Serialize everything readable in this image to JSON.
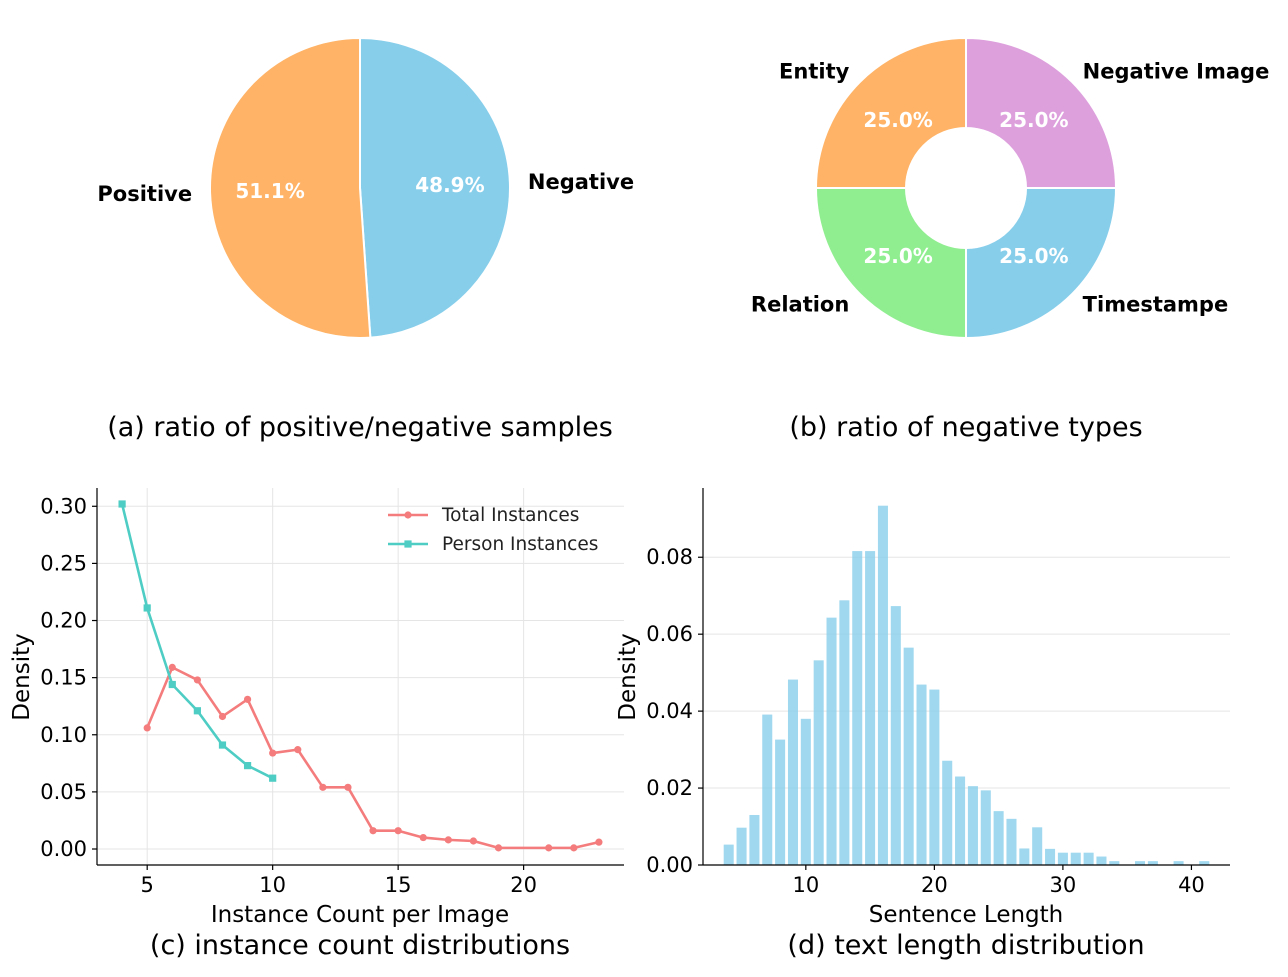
{
  "chart_data": [
    {
      "id": "a",
      "type": "pie",
      "caption": "(a) ratio of positive/negative samples",
      "start_angle_deg": 90,
      "counterclock": false,
      "slices": [
        {
          "label": "Negative",
          "value": 48.9,
          "pct_label": "48.9%",
          "color": "#87ceeb"
        },
        {
          "label": "Positive",
          "value": 51.1,
          "pct_label": "51.1%",
          "color": "#ffb366"
        }
      ]
    },
    {
      "id": "b",
      "type": "donut",
      "caption": "(b) ratio of negative types",
      "start_angle_deg": 90,
      "counterclock": false,
      "hole_ratio": 0.4,
      "slices": [
        {
          "label": "Negative Image",
          "value": 25.0,
          "pct_label": "25.0%",
          "color": "#dda0dd"
        },
        {
          "label": "Timestampe",
          "value": 25.0,
          "pct_label": "25.0%",
          "color": "#87ceeb"
        },
        {
          "label": "Relation",
          "value": 25.0,
          "pct_label": "25.0%",
          "color": "#90ee90"
        },
        {
          "label": "Entity",
          "value": 25.0,
          "pct_label": "25.0%",
          "color": "#ffb366"
        }
      ]
    },
    {
      "id": "c",
      "type": "line",
      "caption": "(c) instance count distributions",
      "xlabel": "Instance Count per Image",
      "ylabel": "Density",
      "xlim": [
        3,
        24
      ],
      "ylim": [
        -0.014,
        0.316
      ],
      "xticks": [
        5,
        10,
        15,
        20
      ],
      "yticks": [
        0.0,
        0.05,
        0.1,
        0.15,
        0.2,
        0.25,
        0.3
      ],
      "ytick_labels": [
        "0.00",
        "0.05",
        "0.10",
        "0.15",
        "0.20",
        "0.25",
        "0.30"
      ],
      "grid": true,
      "legend_position": "top-right",
      "series": [
        {
          "name": "Total Instances",
          "marker": "circle",
          "color": "#f47c7c",
          "x": [
            5,
            6,
            7,
            8,
            9,
            10,
            11,
            12,
            13,
            14,
            15,
            16,
            17,
            18,
            19,
            21,
            22,
            23
          ],
          "y": [
            0.106,
            0.159,
            0.148,
            0.116,
            0.131,
            0.084,
            0.087,
            0.054,
            0.054,
            0.016,
            0.016,
            0.01,
            0.008,
            0.007,
            0.001,
            0.001,
            0.001,
            0.006
          ]
        },
        {
          "name": "Person Instances",
          "marker": "square",
          "color": "#4ecdc4",
          "x": [
            4,
            5,
            6,
            7,
            8,
            9,
            10
          ],
          "y": [
            0.302,
            0.211,
            0.144,
            0.121,
            0.091,
            0.073,
            0.062
          ]
        }
      ]
    },
    {
      "id": "d",
      "type": "bar",
      "caption": "(d) text length distribution",
      "xlabel": "Sentence Length",
      "ylabel": "Density",
      "xlim": [
        2,
        43
      ],
      "ylim": [
        0,
        0.098
      ],
      "xticks": [
        10,
        20,
        30,
        40
      ],
      "yticks": [
        0.0,
        0.02,
        0.04,
        0.06,
        0.08
      ],
      "ytick_labels": [
        "0.00",
        "0.02",
        "0.04",
        "0.06",
        "0.08"
      ],
      "grid": true,
      "color": "#87ceeb",
      "categories": [
        4,
        5,
        6,
        7,
        8,
        9,
        10,
        11,
        12,
        13,
        14,
        15,
        16,
        17,
        18,
        19,
        20,
        21,
        22,
        23,
        24,
        25,
        26,
        27,
        28,
        29,
        30,
        31,
        32,
        33,
        34,
        36,
        37,
        39,
        41
      ],
      "values": [
        0.0053,
        0.0097,
        0.013,
        0.0391,
        0.0326,
        0.0482,
        0.038,
        0.0532,
        0.0643,
        0.0688,
        0.0816,
        0.0816,
        0.0934,
        0.0673,
        0.0565,
        0.0469,
        0.0456,
        0.0271,
        0.023,
        0.0205,
        0.0194,
        0.014,
        0.012,
        0.0043,
        0.0098,
        0.0042,
        0.0032,
        0.0032,
        0.0032,
        0.0022,
        0.001,
        0.001,
        0.001,
        0.001,
        0.001
      ]
    }
  ]
}
